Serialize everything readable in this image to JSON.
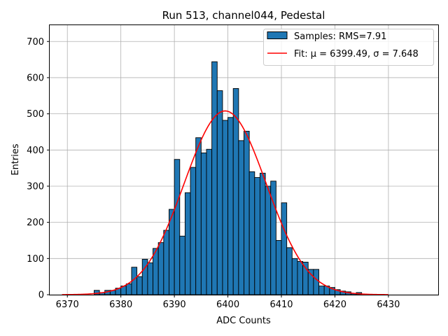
{
  "chart_data": {
    "type": "histogram",
    "title": "Run 513, channel044, Pedestal",
    "xlabel": "ADC Counts",
    "ylabel": "Entries",
    "xlim": [
      6366.7,
      6439.3
    ],
    "ylim": [
      0,
      745
    ],
    "xticks": [
      6370,
      6380,
      6390,
      6400,
      6410,
      6420,
      6430
    ],
    "yticks": [
      0,
      100,
      200,
      300,
      400,
      500,
      600,
      700
    ],
    "grid": true,
    "legend_position": "top-right",
    "bin_width": 1,
    "histogram": {
      "name": "Samples: RMS=7.91",
      "color": "#1f77b4",
      "bin_starts": [
        6369,
        6370,
        6371,
        6372,
        6373,
        6374,
        6375,
        6376,
        6377,
        6378,
        6379,
        6380,
        6381,
        6382,
        6383,
        6384,
        6385,
        6386,
        6387,
        6388,
        6389,
        6390,
        6391,
        6392,
        6393,
        6394,
        6395,
        6396,
        6397,
        6398,
        6399,
        6400,
        6401,
        6402,
        6403,
        6404,
        6405,
        6406,
        6407,
        6408,
        6409,
        6410,
        6411,
        6412,
        6413,
        6414,
        6415,
        6416,
        6417,
        6418,
        6419,
        6420,
        6421,
        6422,
        6423,
        6424,
        6425,
        6426,
        6427,
        6428,
        6429,
        6430,
        6431,
        6432,
        6433,
        6434,
        6435,
        6436
      ],
      "counts": [
        0,
        0,
        0,
        0,
        0,
        0,
        12,
        6,
        12,
        12,
        18,
        24,
        30,
        76,
        50,
        98,
        88,
        128,
        144,
        178,
        236,
        374,
        162,
        282,
        352,
        434,
        392,
        402,
        644,
        564,
        482,
        490,
        570,
        426,
        452,
        340,
        324,
        336,
        300,
        314,
        150,
        254,
        130,
        100,
        92,
        90,
        70,
        70,
        24,
        24,
        20,
        14,
        10,
        8,
        4,
        6,
        0,
        0,
        0,
        0,
        0,
        0,
        0,
        0,
        0,
        0,
        0,
        0
      ]
    },
    "fit": {
      "name": "Fit: μ = 6399.49, σ = 7.648",
      "color": "#ff0000",
      "type": "gaussian",
      "mu": 6399.49,
      "sigma": 7.648,
      "amplitude": 508,
      "x_range": [
        6369,
        6430
      ]
    }
  }
}
